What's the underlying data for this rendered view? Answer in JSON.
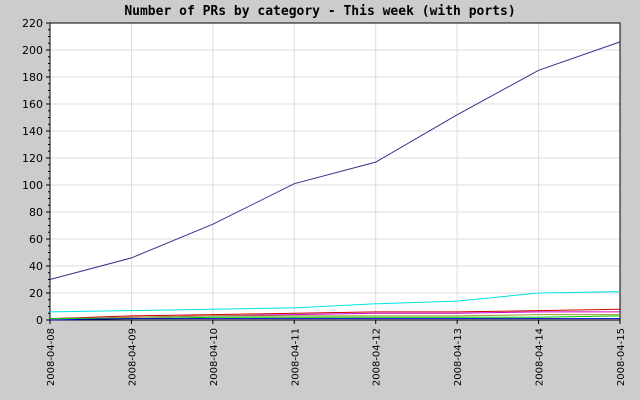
{
  "chart_data": {
    "type": "line",
    "title": "Number of PRs by category - This week (with ports)",
    "xlabel": "",
    "ylabel": "",
    "ylim": [
      0,
      220
    ],
    "yticks": [
      0,
      20,
      40,
      60,
      80,
      100,
      120,
      140,
      160,
      180,
      200,
      220
    ],
    "x": [
      "2008-04-08",
      "2008-04-09",
      "2008-04-10",
      "2008-04-11",
      "2008-04-12",
      "2008-04-13",
      "2008-04-14",
      "2008-04-15"
    ],
    "grid": true,
    "legend": "none",
    "background": "#ffffff",
    "series": [
      {
        "color": "#33338f",
        "values": [
          30,
          46,
          71,
          101,
          117,
          152,
          185,
          206
        ]
      },
      {
        "color": "#00e5e5",
        "values": [
          6,
          7,
          8,
          9,
          12,
          14,
          20,
          21
        ]
      },
      {
        "color": "#cc0000",
        "values": [
          1,
          3,
          4,
          5,
          6,
          6,
          7,
          8
        ]
      },
      {
        "color": "#cc00cc",
        "values": [
          1,
          2,
          3,
          4,
          5,
          5,
          6,
          6
        ]
      },
      {
        "color": "#999933",
        "values": [
          1,
          2,
          3,
          3,
          3,
          3,
          4,
          4
        ]
      },
      {
        "color": "#00cc00",
        "values": [
          1,
          1,
          2,
          2,
          2,
          2,
          2,
          3
        ]
      },
      {
        "color": "#0000cc",
        "values": [
          0,
          1,
          1,
          1,
          1,
          1,
          1,
          1
        ]
      }
    ]
  }
}
